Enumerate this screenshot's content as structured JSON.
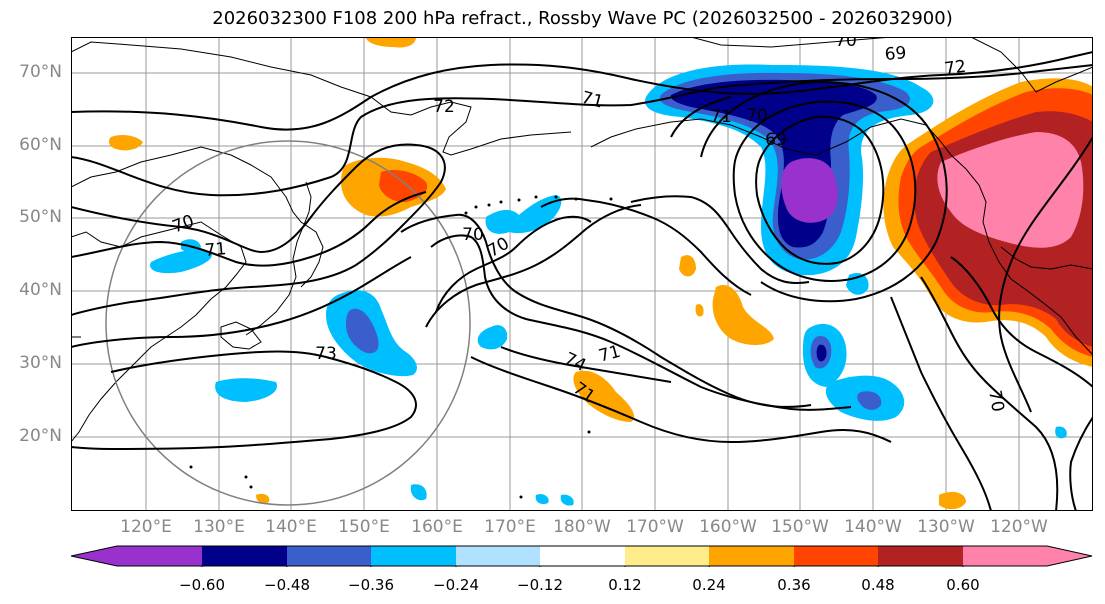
{
  "title": "2026032300 F108 200 hPa refract., Rossby Wave PC (2026032500 - 2026032900)",
  "lat_labels": [
    "70°N",
    "60°N",
    "50°N",
    "40°N",
    "30°N",
    "20°N"
  ],
  "lon_labels": [
    "120°E",
    "130°E",
    "140°E",
    "150°E",
    "160°E",
    "170°E",
    "180°W",
    "170°W",
    "160°W",
    "150°W",
    "140°W",
    "130°W",
    "120°W"
  ],
  "contour_labels": [
    "70",
    "71",
    "72",
    "71",
    "72",
    "70",
    "69",
    "70",
    "71",
    "69",
    "70",
    "70",
    "73",
    "74",
    "71",
    "71",
    "70"
  ],
  "colorbar": {
    "ticks": [
      "−0.60",
      "−0.48",
      "−0.36",
      "−0.24",
      "−0.12",
      "0.12",
      "0.24",
      "0.36",
      "0.48",
      "0.60"
    ],
    "colors": [
      "#9932cc",
      "#00008b",
      "#3a5fcd",
      "#00bfff",
      "#b0e2ff",
      "#ffffff",
      "#ffec8b",
      "#ffa500",
      "#ff4500",
      "#b22222",
      "#ff82ab"
    ]
  }
}
